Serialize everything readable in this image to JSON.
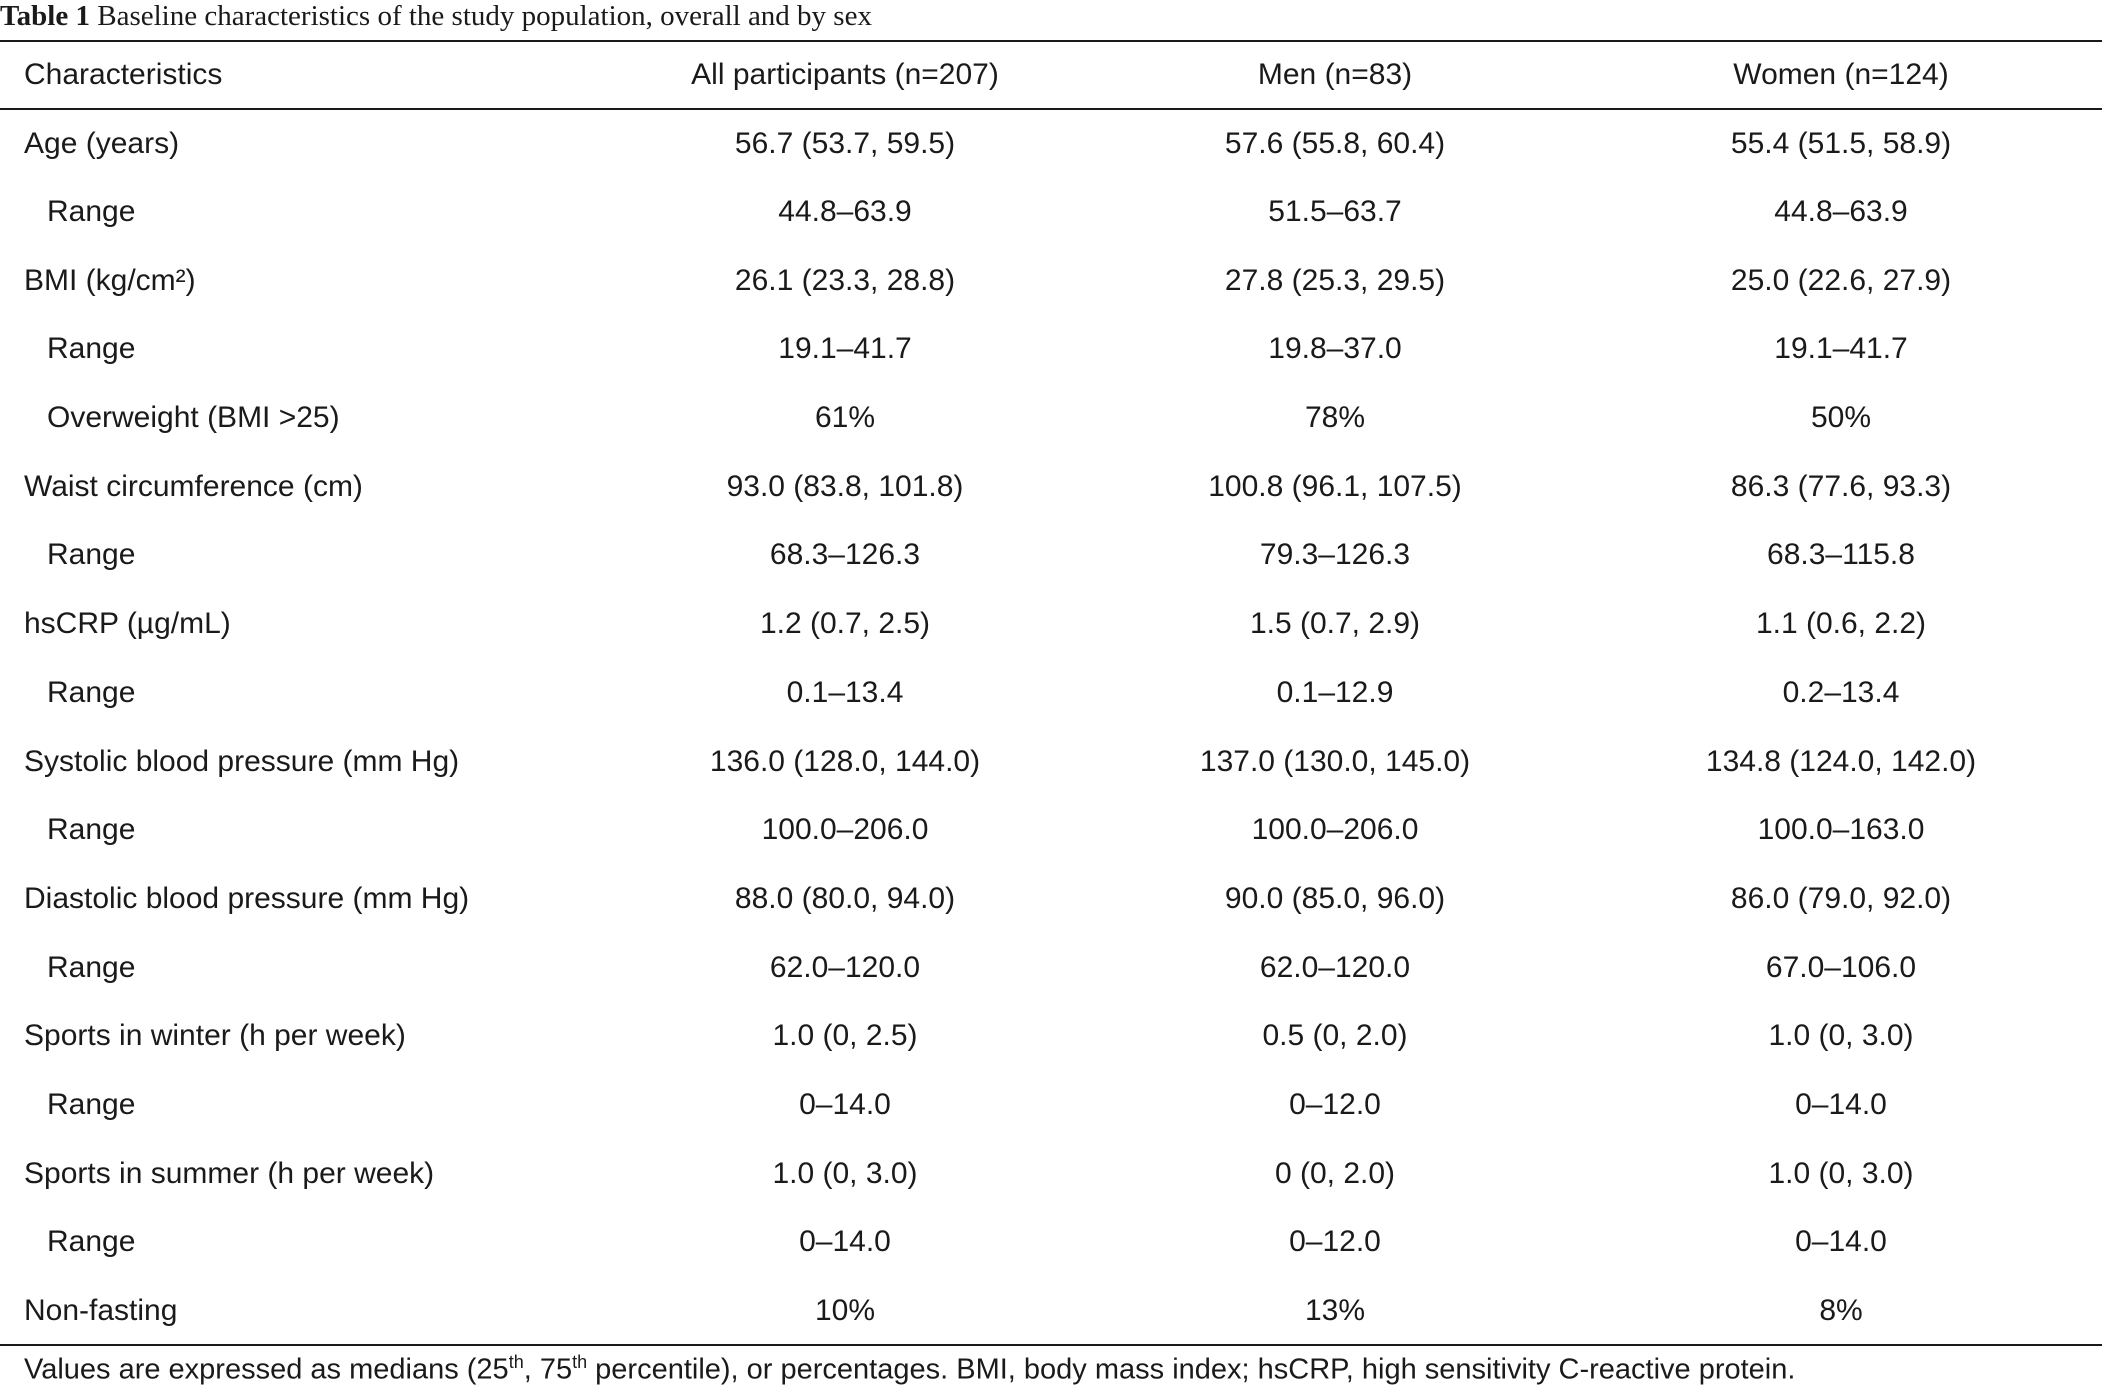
{
  "caption": {
    "label": "Table 1",
    "text": "Baseline characteristics of the study population, overall and by sex"
  },
  "table": {
    "headers": [
      "Characteristics",
      "All participants (n=207)",
      "Men (n=83)",
      "Women (n=124)"
    ],
    "rows": [
      {
        "label": "Age (years)",
        "sub": false,
        "values": [
          "56.7 (53.7, 59.5)",
          "57.6 (55.8, 60.4)",
          "55.4 (51.5, 58.9)"
        ]
      },
      {
        "label": "Range",
        "sub": true,
        "values": [
          "44.8–63.9",
          "51.5–63.7",
          "44.8–63.9"
        ]
      },
      {
        "label": "BMI (kg/cm²)",
        "sub": false,
        "values": [
          "26.1 (23.3, 28.8)",
          "27.8 (25.3, 29.5)",
          "25.0 (22.6, 27.9)"
        ]
      },
      {
        "label": "Range",
        "sub": true,
        "values": [
          "19.1–41.7",
          "19.8–37.0",
          "19.1–41.7"
        ]
      },
      {
        "label": "Overweight (BMI >25)",
        "sub": true,
        "values": [
          "61%",
          "78%",
          "50%"
        ]
      },
      {
        "label": "Waist circumference (cm)",
        "sub": false,
        "values": [
          "93.0 (83.8, 101.8)",
          "100.8 (96.1, 107.5)",
          "86.3 (77.6, 93.3)"
        ]
      },
      {
        "label": "Range",
        "sub": true,
        "values": [
          "68.3–126.3",
          "79.3–126.3",
          "68.3–115.8"
        ]
      },
      {
        "label": "hsCRP (µg/mL)",
        "sub": false,
        "values": [
          "1.2 (0.7, 2.5)",
          "1.5 (0.7, 2.9)",
          "1.1 (0.6, 2.2)"
        ]
      },
      {
        "label": "Range",
        "sub": true,
        "values": [
          "0.1–13.4",
          "0.1–12.9",
          "0.2–13.4"
        ]
      },
      {
        "label": "Systolic blood pressure (mm Hg)",
        "sub": false,
        "values": [
          "136.0 (128.0, 144.0)",
          "137.0 (130.0, 145.0)",
          "134.8 (124.0, 142.0)"
        ]
      },
      {
        "label": "Range",
        "sub": true,
        "values": [
          "100.0–206.0",
          "100.0–206.0",
          "100.0–163.0"
        ]
      },
      {
        "label": "Diastolic blood pressure (mm Hg)",
        "sub": false,
        "values": [
          "88.0 (80.0, 94.0)",
          "90.0 (85.0, 96.0)",
          "86.0 (79.0, 92.0)"
        ]
      },
      {
        "label": "Range",
        "sub": true,
        "values": [
          "62.0–120.0",
          "62.0–120.0",
          "67.0–106.0"
        ]
      },
      {
        "label": "Sports in winter (h per week)",
        "sub": false,
        "values": [
          "1.0 (0, 2.5)",
          "0.5 (0, 2.0)",
          "1.0 (0, 3.0)"
        ]
      },
      {
        "label": "Range",
        "sub": true,
        "values": [
          "0–14.0",
          "0–12.0",
          "0–14.0"
        ]
      },
      {
        "label": "Sports in summer (h per week)",
        "sub": false,
        "values": [
          "1.0 (0, 3.0)",
          "0 (0, 2.0)",
          "1.0 (0, 3.0)"
        ]
      },
      {
        "label": "Range",
        "sub": true,
        "values": [
          "0–14.0",
          "0–12.0",
          "0–14.0"
        ]
      },
      {
        "label": "Non-fasting",
        "sub": false,
        "values": [
          "10%",
          "13%",
          "8%"
        ]
      }
    ]
  },
  "footnote": {
    "part1": "Values are expressed as medians (25",
    "sup1": "th",
    "part2": ", 75",
    "sup2": "th",
    "part3": " percentile), or percentages. BMI, body mass index; hsCRP, high sensitivity C-reactive protein."
  }
}
